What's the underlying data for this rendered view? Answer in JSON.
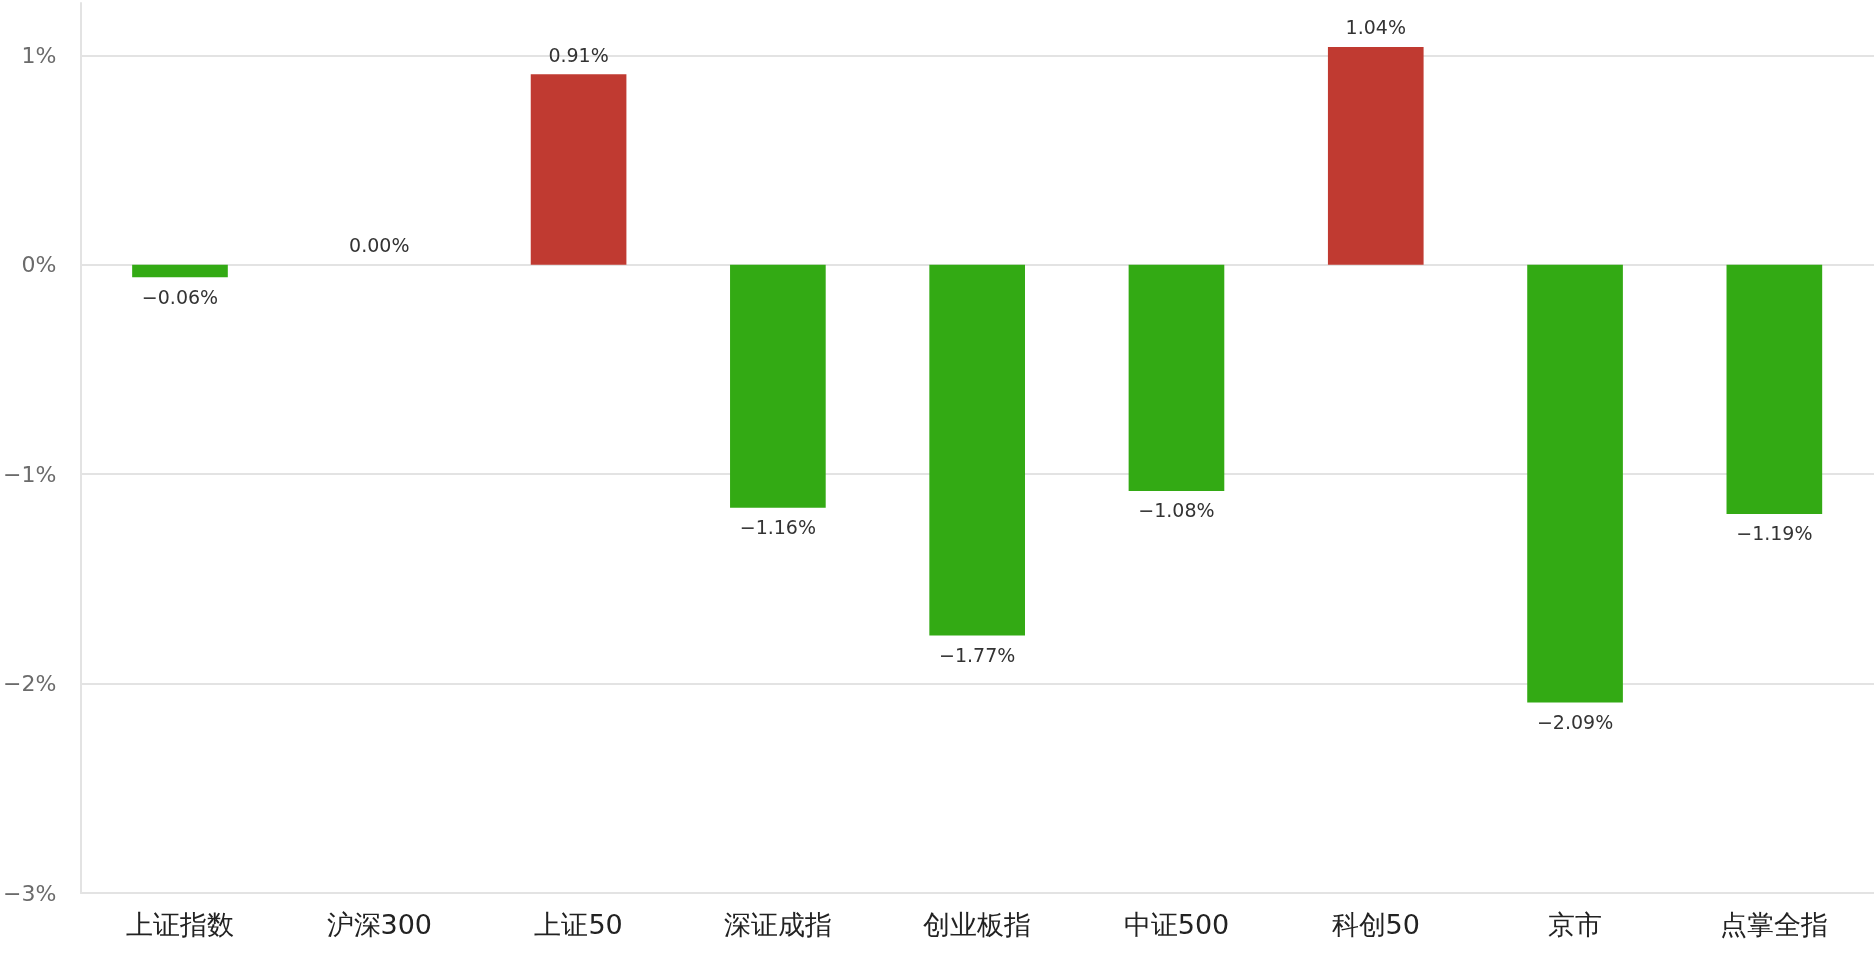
{
  "chart_data": {
    "type": "bar",
    "categories": [
      "上证指数",
      "沪深300",
      "上证50",
      "深证成指",
      "创业板指",
      "中证500",
      "科创50",
      "京市",
      "点掌全指"
    ],
    "values": [
      -0.06,
      0.0,
      0.91,
      -1.16,
      -1.77,
      -1.08,
      1.04,
      -2.09,
      -1.19
    ],
    "colors": [
      "#33aa14",
      "#33aa14",
      "#c03a31",
      "#33aa14",
      "#33aa14",
      "#33aa14",
      "#c03a31",
      "#33aa14",
      "#33aa14"
    ],
    "value_labels": [
      "−0.06%",
      "0.00%",
      "0.91%",
      "−1.16%",
      "−1.77%",
      "−1.08%",
      "1.04%",
      "−2.09%",
      "−1.19%"
    ],
    "ylim": [
      -3,
      1.25
    ],
    "yticks": [
      {
        "value": -3,
        "label": "−3%"
      },
      {
        "value": -2,
        "label": "−2%"
      },
      {
        "value": -1,
        "label": "−1%"
      },
      {
        "value": 0,
        "label": "0%"
      },
      {
        "value": 1,
        "label": "1%"
      }
    ],
    "grid": "y"
  }
}
